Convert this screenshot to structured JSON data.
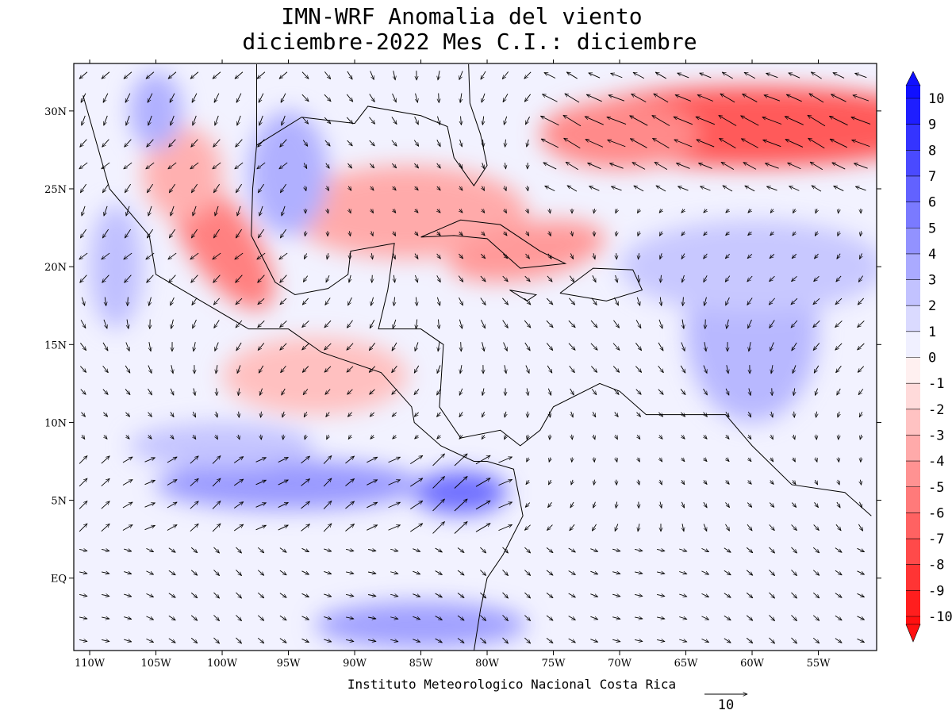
{
  "header": {
    "title_lines": [
      "IMN-WRF Anomalia del viento",
      "diciembre-2022 Mes C.I.: diciembre"
    ]
  },
  "map": {
    "xticks": [
      {
        "value": -110,
        "label": "110W"
      },
      {
        "value": -105,
        "label": "105W"
      },
      {
        "value": -100,
        "label": "100W"
      },
      {
        "value": -95,
        "label": "95W"
      },
      {
        "value": -90,
        "label": "90W"
      },
      {
        "value": -85,
        "label": "85W"
      },
      {
        "value": -80,
        "label": "80W"
      },
      {
        "value": -75,
        "label": "75W"
      },
      {
        "value": -70,
        "label": "70W"
      },
      {
        "value": -65,
        "label": "65W"
      },
      {
        "value": -60,
        "label": "60W"
      },
      {
        "value": -55,
        "label": "55W"
      }
    ],
    "yticks": [
      {
        "value": 30,
        "label": "30N"
      },
      {
        "value": 25,
        "label": "25N"
      },
      {
        "value": 20,
        "label": "20N"
      },
      {
        "value": 15,
        "label": "15N"
      },
      {
        "value": 10,
        "label": "10N"
      },
      {
        "value": 5,
        "label": "5N"
      },
      {
        "value": 0,
        "label": "EQ"
      }
    ],
    "footer": "Instituto Meteorologico Nacional Costa Rica",
    "reference_vector": "10"
  },
  "colorbar": {
    "labels": [
      "10",
      "9",
      "8",
      "7",
      "6",
      "5",
      "4",
      "3",
      "2",
      "1",
      "0",
      "-1",
      "-2",
      "-3",
      "-4",
      "-5",
      "-6",
      "-7",
      "-8",
      "-9",
      "-10"
    ],
    "colors": [
      "#1010ff",
      "#1e1eff",
      "#3434ff",
      "#4a4aff",
      "#6262ff",
      "#7a7aff",
      "#9292ff",
      "#aaaaff",
      "#c2c2ff",
      "#dadaff",
      "#f0f0ff",
      "#fff0f0",
      "#ffdada",
      "#ffc2c2",
      "#ffaaaa",
      "#ff9292",
      "#ff7a7a",
      "#ff6262",
      "#ff4a4a",
      "#ff3434",
      "#ff1e1e",
      "#ff1010"
    ]
  }
}
